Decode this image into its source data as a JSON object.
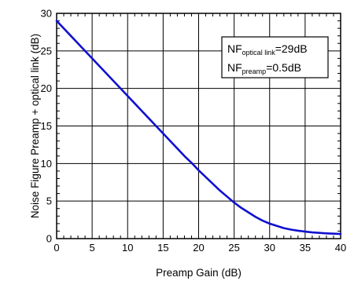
{
  "chart_data": {
    "type": "line",
    "title": "",
    "xlabel": "Preamp Gain (dB)",
    "ylabel": "Noise Figure Preamp + optical link (dB)",
    "xlim": [
      0,
      40
    ],
    "ylim": [
      0,
      30
    ],
    "x_ticks": [
      0,
      5,
      10,
      15,
      20,
      25,
      30,
      35,
      40
    ],
    "y_ticks": [
      0,
      5,
      10,
      15,
      20,
      25,
      30
    ],
    "grid": true,
    "legend_position": "top-right",
    "legend": {
      "line1_main": "NF",
      "line1_sub": "optical link",
      "line1_value": "=29dB",
      "line2_main": "NF",
      "line2_sub": "preamp",
      "line2_value": "=0.5dB"
    },
    "series": [
      {
        "color": "#1010d0",
        "x": [
          0,
          1,
          2,
          3,
          4,
          5,
          6,
          7,
          8,
          9,
          10,
          11,
          12,
          13,
          14,
          15,
          16,
          17,
          18,
          19,
          20,
          21,
          22,
          23,
          24,
          25,
          26,
          27,
          28,
          29,
          30,
          31,
          32,
          33,
          34,
          35,
          36,
          37,
          38,
          39,
          40
        ],
        "y": [
          29.0,
          28.0,
          27.0,
          26.0,
          25.0,
          24.0,
          23.0,
          22.0,
          21.0,
          20.0,
          19.0,
          18.0,
          17.0,
          16.0,
          15.0,
          14.0,
          13.0,
          12.0,
          11.0,
          10.1,
          9.1,
          8.2,
          7.3,
          6.4,
          5.6,
          4.8,
          4.1,
          3.5,
          2.9,
          2.4,
          2.0,
          1.7,
          1.4,
          1.2,
          1.05,
          0.93,
          0.83,
          0.76,
          0.7,
          0.66,
          0.62
        ]
      }
    ]
  }
}
